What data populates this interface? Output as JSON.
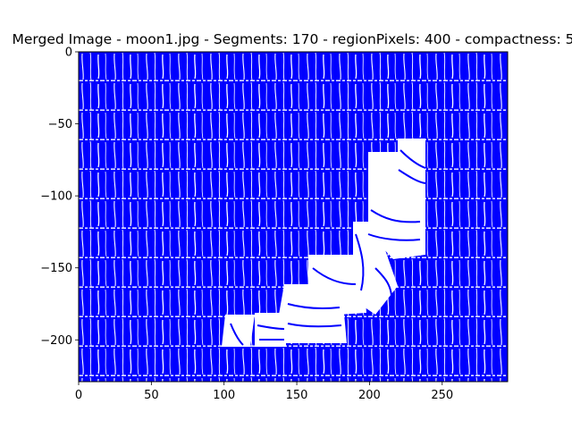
{
  "chart_data": {
    "type": "heatmap",
    "title": "Merged Image - moon1.jpg - Segments: 170 - regionPixels: 400 - compactness: 5",
    "xlabel": "",
    "ylabel": "",
    "xlim": [
      0,
      295
    ],
    "ylim": [
      -229,
      0
    ],
    "xticks": [
      0,
      50,
      100,
      150,
      200,
      250
    ],
    "yticks": [
      0,
      -50,
      -100,
      -150,
      -200
    ],
    "grid": false,
    "legend": "none",
    "colors": {
      "foreground": "#0000ff",
      "background": "#ffffff"
    }
  }
}
